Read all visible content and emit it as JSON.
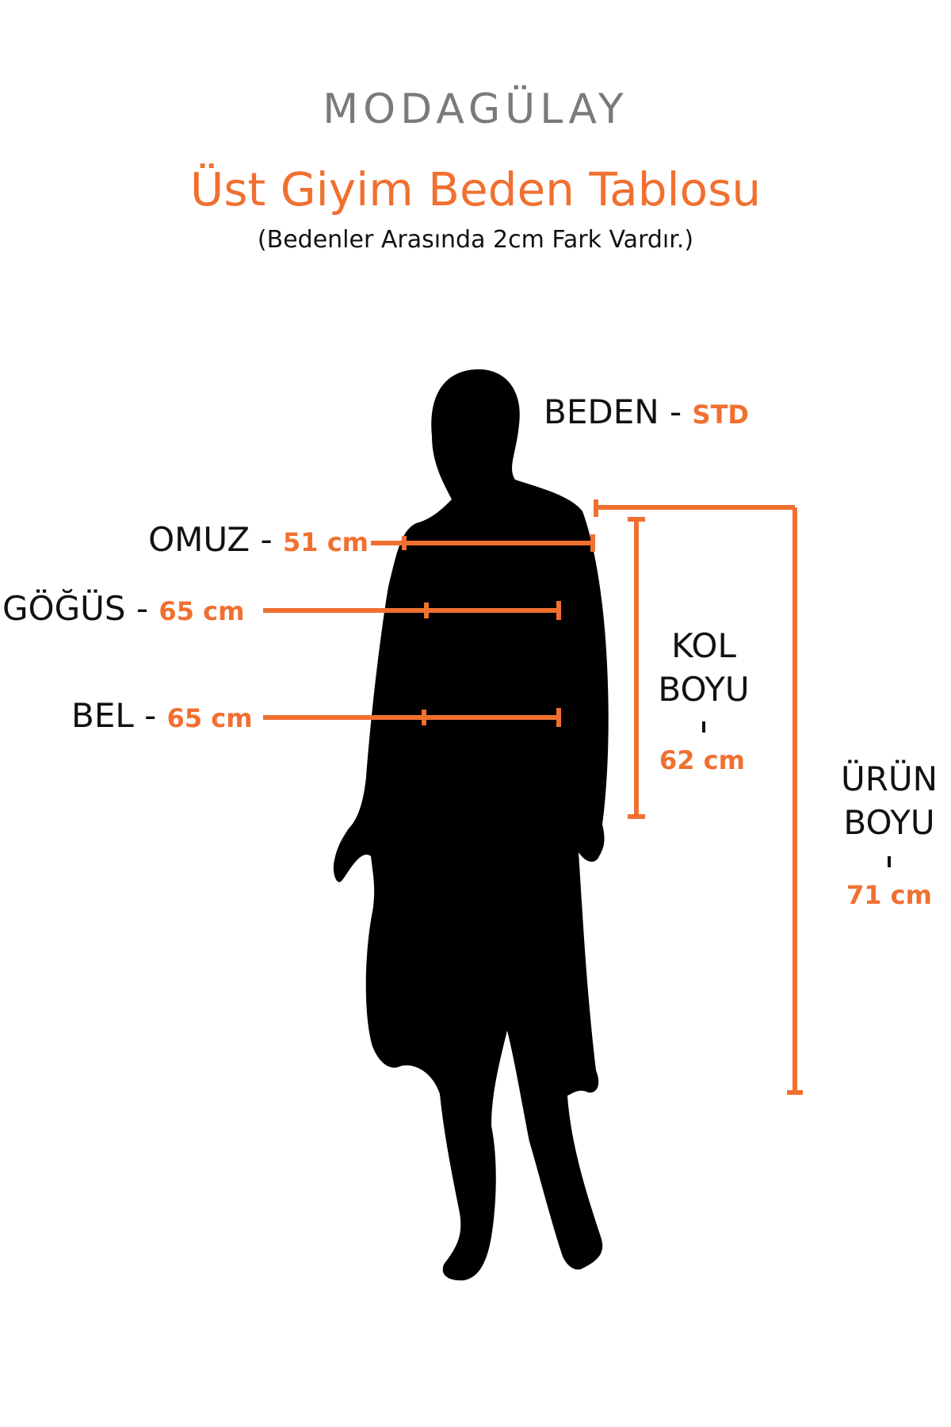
{
  "brand": {
    "logo_text": "MODAGÜLAY"
  },
  "header": {
    "title": "Üst Giyim Beden Tablosu",
    "subtitle": "(Bedenler Arasında 2cm Fark Vardır.)"
  },
  "size": {
    "label": "BEDEN -",
    "value": "STD"
  },
  "measurements": {
    "omuz": {
      "label": "OMUZ -",
      "value": "51 cm"
    },
    "gogus": {
      "label": "GÖĞÜS -",
      "value": "65 cm"
    },
    "bel": {
      "label": "BEL -",
      "value": "65 cm"
    },
    "kol_boyu": {
      "label_line1": "KOL",
      "label_line2": "BOYU",
      "value": "62 cm"
    },
    "urun_boyu": {
      "label_line1": "ÜRÜN",
      "label_line2": "BOYU",
      "value": "71 cm"
    }
  },
  "colors": {
    "accent": "#f07030",
    "silhouette": "#000000",
    "logo": "#7a7a7a"
  }
}
